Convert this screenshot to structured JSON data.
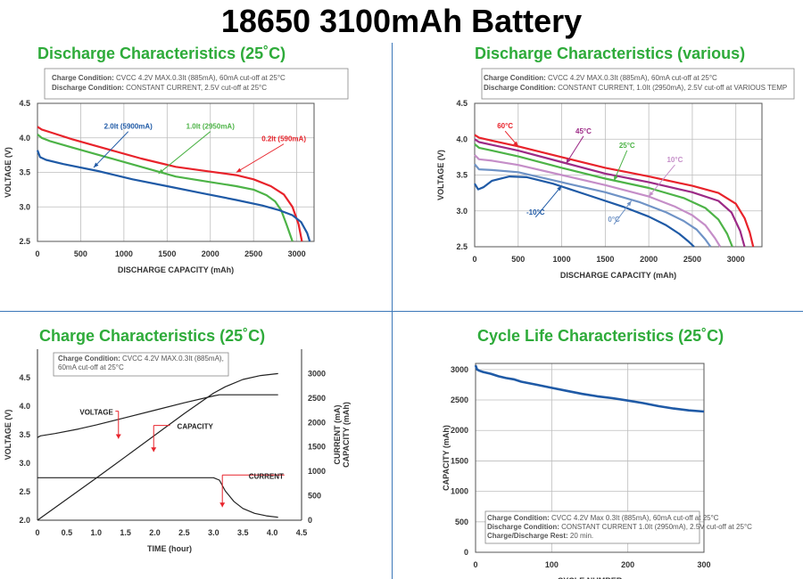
{
  "page_title": "18650 3100mAh Battery",
  "chart_data": [
    {
      "id": "p1",
      "type": "line",
      "title": "Discharge Characteristics (25˚C)",
      "xlabel": "DISCHARGE CAPACITY (mAh)",
      "ylabel": "VOLTAGE (V)",
      "xlim": [
        0,
        3200
      ],
      "ylim": [
        2.5,
        4.5
      ],
      "xticks": [
        0,
        500,
        1000,
        1500,
        2000,
        2500,
        3000
      ],
      "yticks": [
        2.5,
        3.0,
        3.5,
        4.0,
        4.5
      ],
      "grid": true,
      "notes": [
        {
          "label": "Charge Condition:",
          "text": "CVCC 4.2V MAX.0.3It (885mA), 60mA cut-off at  25°C"
        },
        {
          "label": "Discharge Condition:",
          "text": "CONSTANT CURRENT, 2.5V cut-off at  25°C"
        }
      ],
      "series": [
        {
          "name": "0.2It (590mA)",
          "color": "#e8232b",
          "x": [
            0,
            50,
            150,
            400,
            800,
            1200,
            1600,
            2000,
            2300,
            2500,
            2700,
            2850,
            2950,
            3020,
            3060
          ],
          "y": [
            4.16,
            4.12,
            4.08,
            3.98,
            3.84,
            3.7,
            3.58,
            3.51,
            3.46,
            3.4,
            3.3,
            3.18,
            3.0,
            2.75,
            2.5
          ]
        },
        {
          "name": "1.0It (2950mA)",
          "color": "#4db347",
          "x": [
            0,
            50,
            150,
            400,
            800,
            1200,
            1600,
            2000,
            2300,
            2500,
            2650,
            2750,
            2820,
            2880,
            2950
          ],
          "y": [
            4.05,
            4.0,
            3.95,
            3.86,
            3.72,
            3.58,
            3.44,
            3.36,
            3.3,
            3.25,
            3.17,
            3.08,
            2.95,
            2.75,
            2.5
          ]
        },
        {
          "name": "2.0It (5900mA)",
          "color": "#1f5aa6",
          "x": [
            0,
            30,
            100,
            300,
            700,
            1100,
            1500,
            1900,
            2300,
            2600,
            2800,
            2950,
            3050,
            3120,
            3150
          ],
          "y": [
            3.82,
            3.72,
            3.68,
            3.62,
            3.52,
            3.4,
            3.3,
            3.2,
            3.1,
            3.02,
            2.95,
            2.88,
            2.78,
            2.62,
            2.5
          ]
        }
      ],
      "annotations": [
        {
          "text": "2.0It (5900mA)",
          "color": "#1f5aa6",
          "tx": 1050,
          "ty": 4.13,
          "ax": 650,
          "ay": 3.57
        },
        {
          "text": "1.0It (2950mA)",
          "color": "#4db347",
          "tx": 2000,
          "ty": 4.13,
          "ax": 1400,
          "ay": 3.48
        },
        {
          "text": "0.2It (590mA)",
          "color": "#e8232b",
          "tx": 2850,
          "ty": 3.95,
          "ax": 2300,
          "ay": 3.5
        }
      ]
    },
    {
      "id": "p2",
      "type": "line",
      "title": "Discharge Characteristics (various)",
      "xlabel": "DISCHARGE CAPACITY (mAh)",
      "ylabel": "VOLTAGE (V)",
      "xlim": [
        0,
        3300
      ],
      "ylim": [
        2.5,
        4.5
      ],
      "xticks": [
        0,
        500,
        1000,
        1500,
        2000,
        2500,
        3000
      ],
      "yticks": [
        2.5,
        3.0,
        3.5,
        4.0,
        4.5
      ],
      "grid": true,
      "notes": [
        {
          "label": "Charge Condition:",
          "text": "CVCC 4.2V MAX.0.3It (885mA), 60mA cut-off at  25°C"
        },
        {
          "label": "Discharge Condition:",
          "text": "CONSTANT CURRENT, 1.0It (2950mA), 2.5V cut-off at VARIOUS TEMP"
        }
      ],
      "series": [
        {
          "name": "60°C",
          "color": "#e8232b",
          "x": [
            0,
            50,
            200,
            500,
            1000,
            1500,
            2000,
            2500,
            2800,
            3000,
            3100,
            3160,
            3200
          ],
          "y": [
            4.06,
            4.02,
            3.98,
            3.9,
            3.75,
            3.6,
            3.48,
            3.35,
            3.25,
            3.1,
            2.9,
            2.7,
            2.5
          ]
        },
        {
          "name": "45°C",
          "color": "#9c2a86",
          "x": [
            0,
            50,
            200,
            500,
            1000,
            1500,
            2000,
            2500,
            2800,
            2950,
            3050,
            3100
          ],
          "y": [
            4.0,
            3.96,
            3.92,
            3.84,
            3.68,
            3.52,
            3.4,
            3.26,
            3.14,
            2.98,
            2.72,
            2.5
          ]
        },
        {
          "name": "25°C",
          "color": "#4db347",
          "x": [
            0,
            50,
            200,
            500,
            1000,
            1500,
            2000,
            2400,
            2650,
            2800,
            2900,
            2960
          ],
          "y": [
            3.93,
            3.88,
            3.84,
            3.76,
            3.6,
            3.45,
            3.32,
            3.18,
            3.04,
            2.88,
            2.68,
            2.5
          ]
        },
        {
          "name": "10°C",
          "color": "#c58ec8",
          "x": [
            0,
            50,
            200,
            500,
            1000,
            1500,
            2000,
            2300,
            2500,
            2650,
            2760,
            2820
          ],
          "y": [
            3.78,
            3.72,
            3.7,
            3.64,
            3.5,
            3.36,
            3.2,
            3.06,
            2.94,
            2.8,
            2.62,
            2.5
          ]
        },
        {
          "name": "0°C",
          "color": "#6f93c6",
          "x": [
            0,
            50,
            200,
            500,
            1000,
            1500,
            1900,
            2200,
            2400,
            2550,
            2650,
            2710
          ],
          "y": [
            3.65,
            3.58,
            3.57,
            3.54,
            3.4,
            3.26,
            3.12,
            2.98,
            2.86,
            2.74,
            2.6,
            2.5
          ]
        },
        {
          "name": "-10°C",
          "color": "#1f5aa6",
          "x": [
            0,
            40,
            100,
            200,
            400,
            600,
            900,
            1300,
            1700,
            2000,
            2200,
            2350,
            2450,
            2520
          ],
          "y": [
            3.38,
            3.3,
            3.33,
            3.42,
            3.48,
            3.47,
            3.38,
            3.22,
            3.06,
            2.92,
            2.8,
            2.68,
            2.58,
            2.5
          ]
        }
      ],
      "annotations": [
        {
          "text": "60°C",
          "color": "#e8232b",
          "tx": 350,
          "ty": 4.15,
          "ax": 500,
          "ay": 3.9
        },
        {
          "text": "45°C",
          "color": "#9c2a86",
          "tx": 1250,
          "ty": 4.08,
          "ax": 1050,
          "ay": 3.66
        },
        {
          "text": "25°C",
          "color": "#4db347",
          "tx": 1750,
          "ty": 3.88,
          "ax": 1600,
          "ay": 3.42
        },
        {
          "text": "10°C",
          "color": "#c58ec8",
          "tx": 2300,
          "ty": 3.68,
          "ax": 2000,
          "ay": 3.2
        },
        {
          "text": "0°C",
          "color": "#6f93c6",
          "tx": 1600,
          "ty": 2.85,
          "ax": 1800,
          "ay": 3.14
        },
        {
          "text": "-10°C",
          "color": "#1f5aa6",
          "tx": 700,
          "ty": 2.95,
          "ax": 1000,
          "ay": 3.35
        }
      ]
    },
    {
      "id": "p3",
      "type": "line",
      "title": "Charge Characteristics (25˚C)",
      "xlabel": "TIME (hour)",
      "ylabel": "VOLTAGE (V)",
      "ylabel_right": "CURRENT (mA)",
      "ylabel_right2": "CAPACITY (mAh)",
      "xlim": [
        0,
        4.5
      ],
      "ylim": [
        2.0,
        5.0
      ],
      "ylim_right": [
        0,
        3500
      ],
      "xticks": [
        0,
        0.5,
        1.0,
        1.5,
        2.0,
        2.5,
        3.0,
        3.5,
        4.0,
        4.5
      ],
      "xtick_labels": [
        "0",
        "0.5",
        "1.0",
        "1.5",
        "2.0",
        "2.5",
        "3.0",
        "3.5",
        "4.0",
        "4.5"
      ],
      "yticks": [
        2.0,
        2.5,
        3.0,
        3.5,
        4.0,
        4.5
      ],
      "yticks_right": [
        0,
        500,
        1000,
        1500,
        2000,
        2500,
        3000
      ],
      "grid": false,
      "notes": [
        {
          "label": "Charge Condition:",
          "text": "CVCC 4.2V MAX.0.3It (885mA),"
        },
        {
          "label": "",
          "text": "60mA cut-off at  25°C"
        }
      ],
      "series": [
        {
          "name": "VOLTAGE",
          "axis": "left",
          "color": "#222222",
          "x": [
            0,
            0.05,
            0.3,
            0.7,
            1.0,
            1.5,
            2.0,
            2.5,
            3.0,
            3.1,
            3.2,
            4.1
          ],
          "y": [
            3.45,
            3.48,
            3.52,
            3.6,
            3.67,
            3.8,
            3.93,
            4.06,
            4.18,
            4.2,
            4.2,
            4.2
          ]
        },
        {
          "name": "CAPACITY",
          "axis": "right",
          "color": "#222222",
          "x": [
            0,
            0.5,
            1.0,
            1.5,
            2.0,
            2.5,
            3.0,
            3.2,
            3.5,
            3.8,
            4.1
          ],
          "y": [
            0,
            430,
            860,
            1300,
            1740,
            2180,
            2600,
            2730,
            2880,
            2960,
            3000
          ]
        },
        {
          "name": "CURRENT",
          "axis": "right",
          "color": "#222222",
          "x": [
            0,
            3.0,
            3.1,
            3.2,
            3.35,
            3.5,
            3.7,
            3.9,
            4.1
          ],
          "y": [
            870,
            870,
            820,
            600,
            380,
            240,
            140,
            90,
            60
          ]
        }
      ],
      "annotations": [
        {
          "text": "VOLTAGE",
          "color": "#222222",
          "tx": 0.72,
          "ty": 3.85,
          "ax": 1.38,
          "ay": 3.43,
          "elbow": true
        },
        {
          "text": "CAPACITY",
          "color": "#222222",
          "tx": 2.38,
          "ty": 3.6,
          "ax": 1.98,
          "ay": 3.2,
          "elbow": true
        },
        {
          "text": "CURRENT",
          "color": "#222222",
          "tx": 3.6,
          "ty": 2.73,
          "ax": 3.15,
          "ay": 2.23,
          "elbow": true
        }
      ]
    },
    {
      "id": "p4",
      "type": "line",
      "title": "Cycle Life Characteristics (25˚C)",
      "xlabel": "CYCLE NUMBER",
      "ylabel": "CAPACITY (mAh)",
      "xlim": [
        0,
        300
      ],
      "ylim": [
        0,
        3100
      ],
      "xticks": [
        0,
        100,
        200,
        300
      ],
      "yticks": [
        0,
        500,
        1000,
        1500,
        2000,
        2500,
        3000
      ],
      "grid": true,
      "notes": [
        {
          "label": "Charge Condition:",
          "text": "CVCC 4.2V Max 0.3It (885mA), 60mA cut-off at 25°C"
        },
        {
          "label": "Discharge Condition:",
          "text": "CONSTANT CURRENT 1.0It (2950mA), 2.5V cut-off at 25°C"
        },
        {
          "label": "Charge/Discharge Rest:",
          "text": "20 min."
        }
      ],
      "series": [
        {
          "name": "",
          "color": "#1f5aa6",
          "x": [
            0,
            2,
            5,
            10,
            20,
            30,
            40,
            50,
            60,
            80,
            100,
            120,
            140,
            160,
            180,
            200,
            220,
            240,
            260,
            280,
            300
          ],
          "y": [
            3070,
            3000,
            2980,
            2960,
            2930,
            2890,
            2860,
            2840,
            2800,
            2750,
            2700,
            2650,
            2600,
            2560,
            2530,
            2490,
            2450,
            2400,
            2360,
            2330,
            2310
          ]
        }
      ]
    }
  ]
}
